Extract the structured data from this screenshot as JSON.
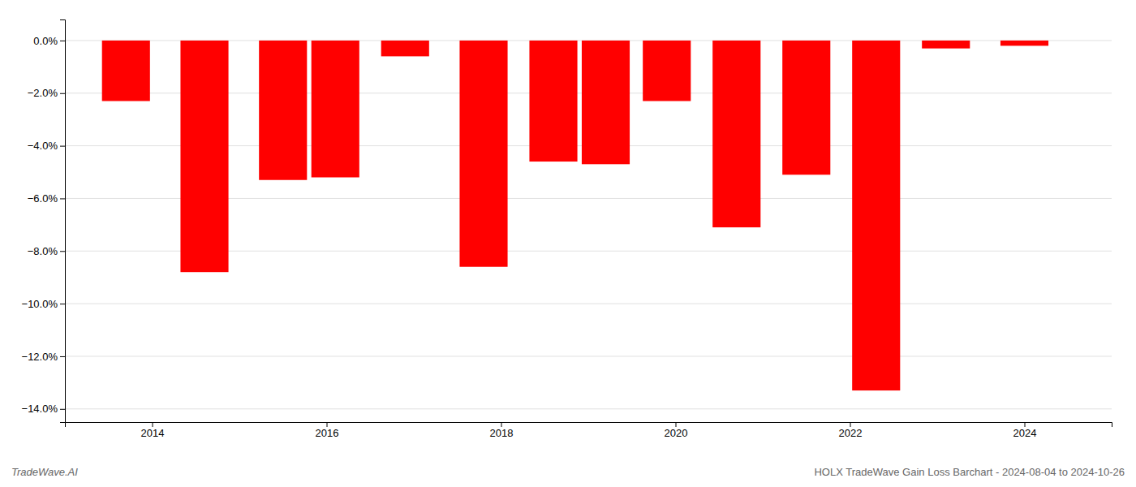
{
  "chart_data": {
    "type": "bar",
    "x": [
      2013.7,
      2014.6,
      2015.5,
      2016.1,
      2016.9,
      2017.8,
      2018.6,
      2019.2,
      2019.9,
      2020.7,
      2021.5,
      2022.3,
      2023.1,
      2024.0
    ],
    "values": [
      -2.3,
      -8.8,
      -5.3,
      -5.2,
      -0.6,
      -8.6,
      -4.6,
      -4.7,
      -2.3,
      -7.1,
      -5.1,
      -13.3,
      -0.3,
      -0.2
    ],
    "color": "#ff0000",
    "xlim": [
      2013.0,
      2025.0
    ],
    "xticks": [
      2014,
      2016,
      2018,
      2020,
      2022,
      2024
    ],
    "ylim": [
      -14.5,
      0.8
    ],
    "yticks": [
      {
        "value": 0.0,
        "label": "0.0%"
      },
      {
        "value": -2.0,
        "label": "−2.0%"
      },
      {
        "value": -4.0,
        "label": "−4.0%"
      },
      {
        "value": -6.0,
        "label": "−6.0%"
      },
      {
        "value": -8.0,
        "label": "−8.0%"
      },
      {
        "value": -10.0,
        "label": "−10.0%"
      },
      {
        "value": -12.0,
        "label": "−12.0%"
      },
      {
        "value": -14.0,
        "label": "−14.0%"
      }
    ],
    "grid": true,
    "annotations": [
      "TradeWave.AI",
      "HOLX TradeWave Gain Loss Barchart - 2024-08-04 to 2024-10-26"
    ]
  }
}
